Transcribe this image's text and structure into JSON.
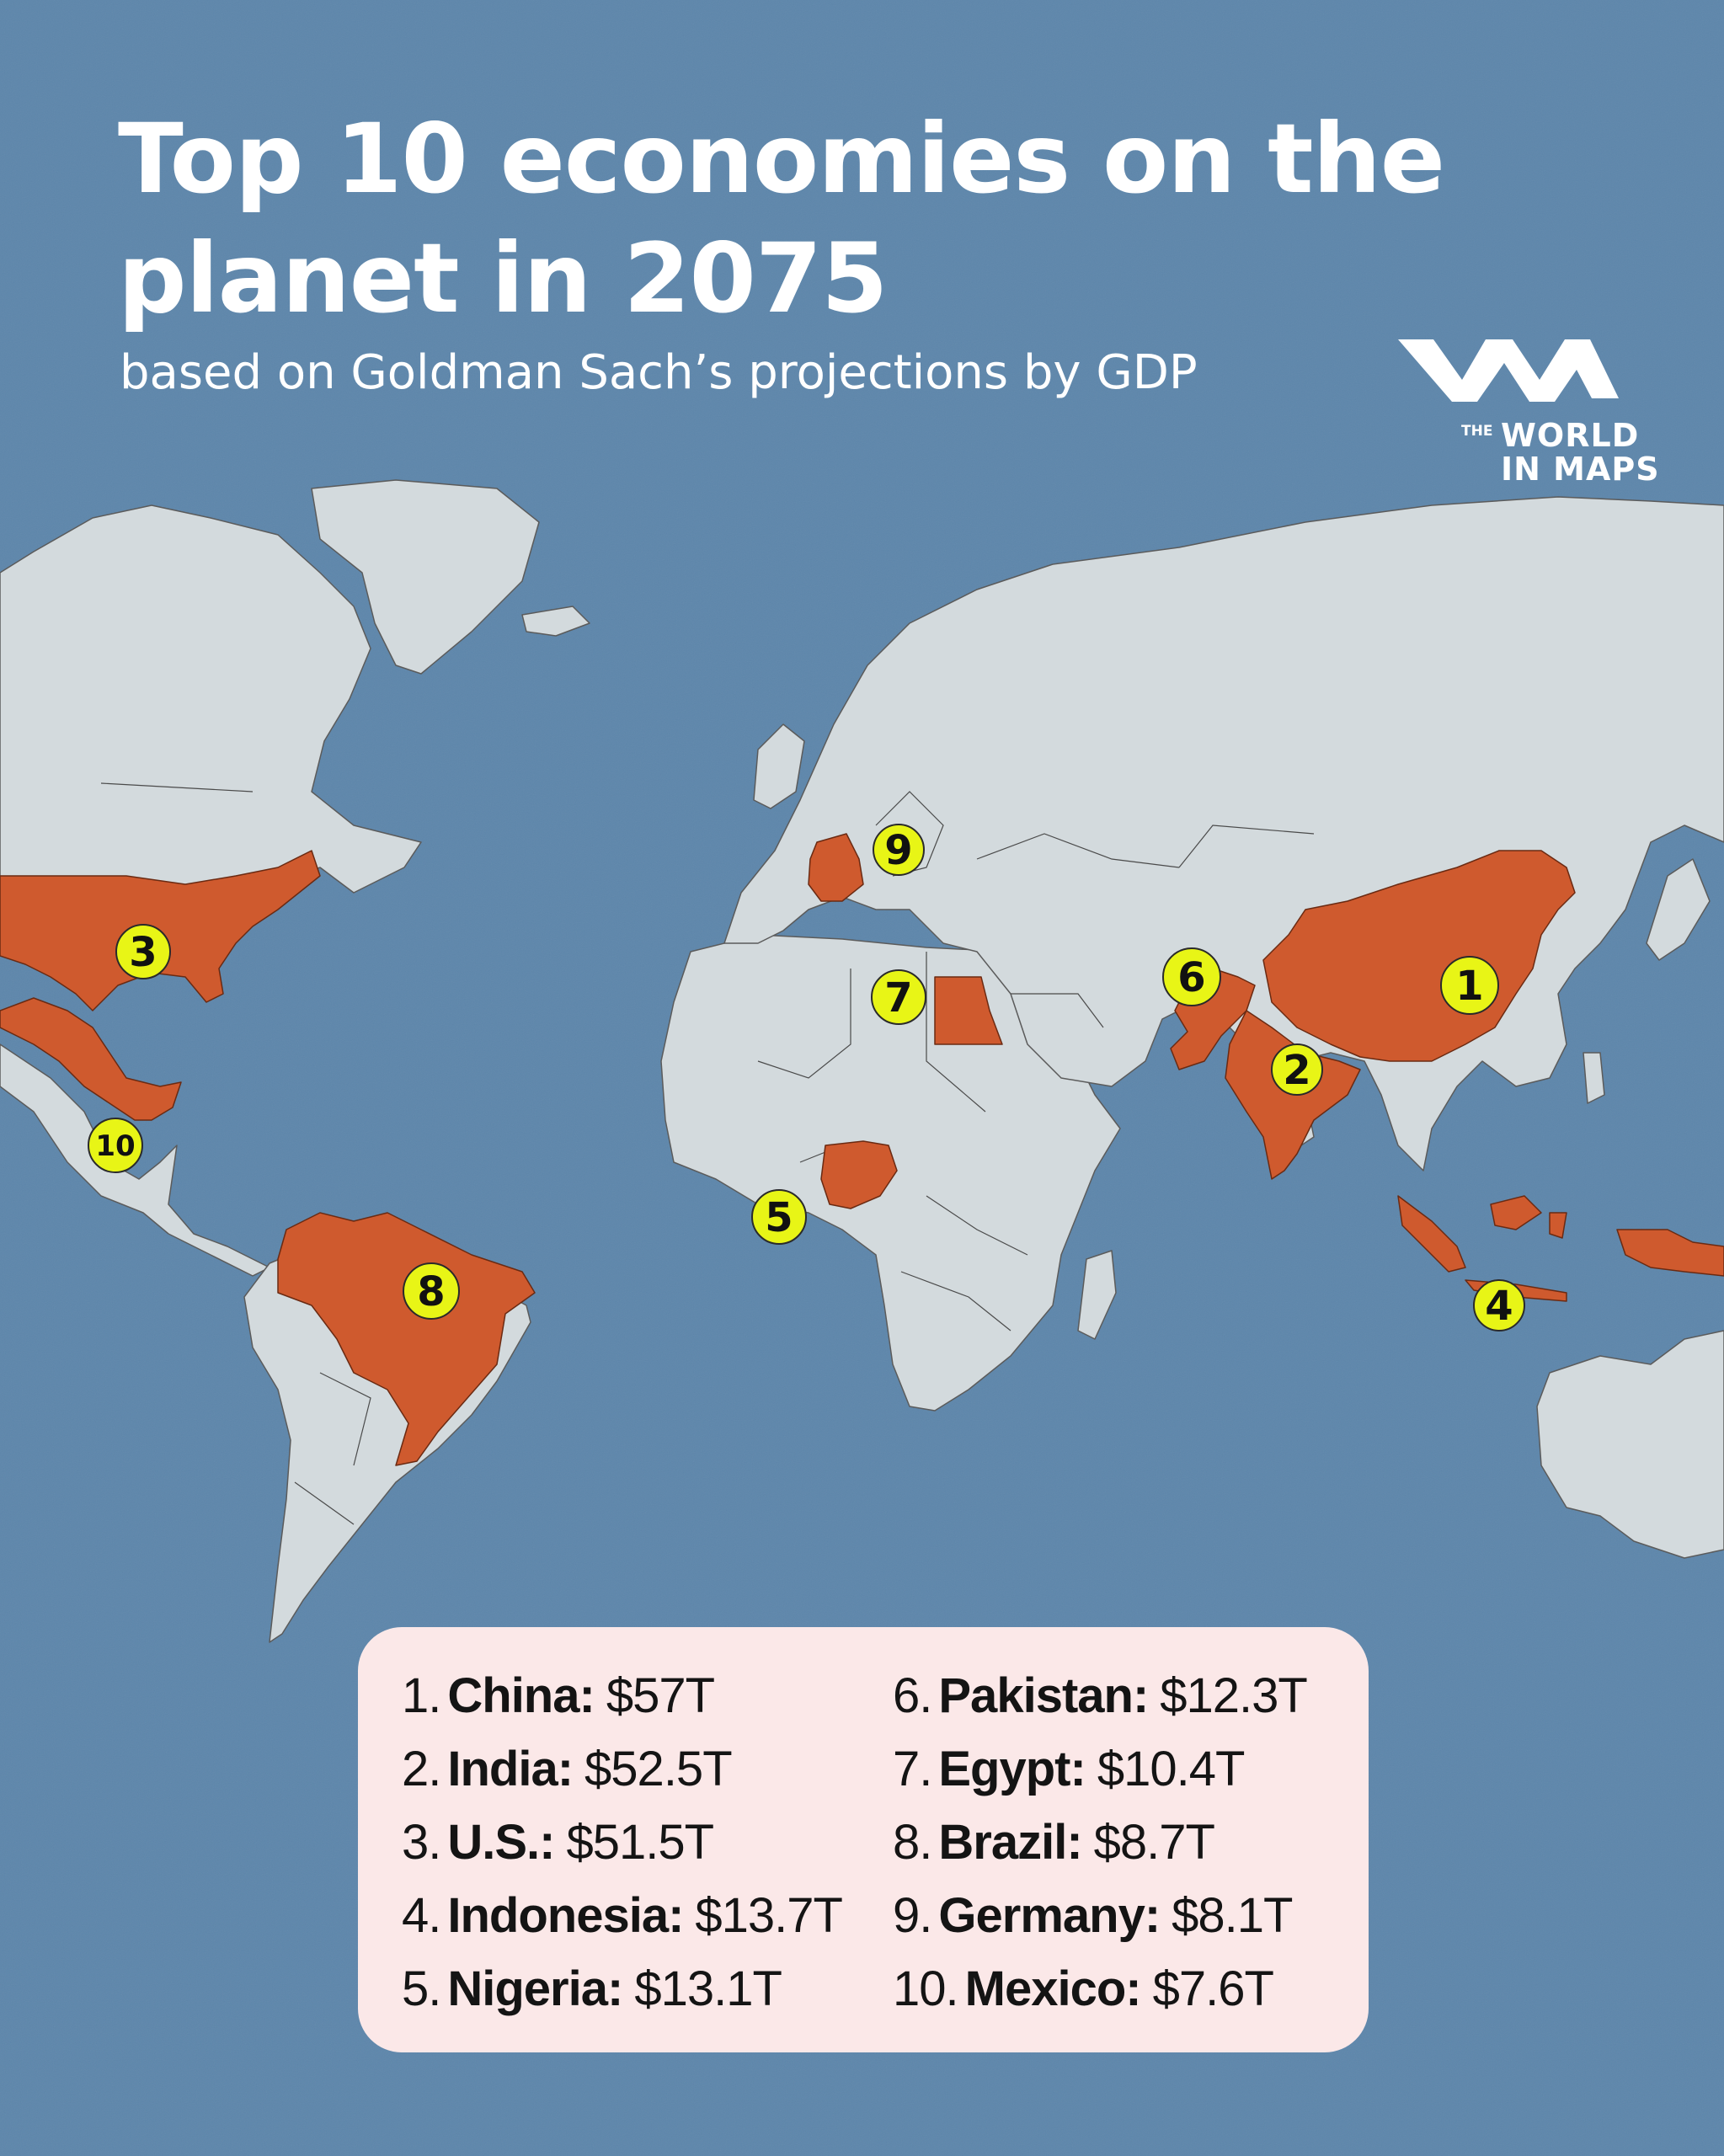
{
  "header": {
    "title": "Top 10 economies on the planet in 2075",
    "subtitle": "based on Goldman Sach’s projections by GDP"
  },
  "logo": {
    "the": "THE",
    "line1": "WORLD",
    "line2": "IN MAPS"
  },
  "colors": {
    "ocean": "#5d86ab",
    "land": "#d3dadd",
    "highlight": "#cf5a2e",
    "marker": "#e8f516",
    "legend_bg": "#fbe8e8",
    "border": "#4a4a4a"
  },
  "markers": [
    {
      "label": "1",
      "country": "China"
    },
    {
      "label": "2",
      "country": "India"
    },
    {
      "label": "3",
      "country": "U.S."
    },
    {
      "label": "4",
      "country": "Indonesia"
    },
    {
      "label": "5",
      "country": "Nigeria"
    },
    {
      "label": "6",
      "country": "Pakistan"
    },
    {
      "label": "7",
      "country": "Egypt"
    },
    {
      "label": "8",
      "country": "Brazil"
    },
    {
      "label": "9",
      "country": "Germany"
    },
    {
      "label": "10",
      "country": "Mexico"
    }
  ],
  "legend": {
    "left": [
      {
        "rank": "1.",
        "name": "China:",
        "value": "$57T"
      },
      {
        "rank": "2.",
        "name": "India:",
        "value": "$52.5T"
      },
      {
        "rank": "3.",
        "name": "U.S.:",
        "value": "$51.5T"
      },
      {
        "rank": "4.",
        "name": "Indonesia:",
        "value": "$13.7T"
      },
      {
        "rank": "5.",
        "name": "Nigeria:",
        "value": "$13.1T"
      }
    ],
    "right": [
      {
        "rank": "6.",
        "name": "Pakistan:",
        "value": "$12.3T"
      },
      {
        "rank": "7.",
        "name": "Egypt:",
        "value": "$10.4T"
      },
      {
        "rank": "8.",
        "name": "Brazil:",
        "value": "$8.7T"
      },
      {
        "rank": "9.",
        "name": "Germany:",
        "value": "$8.1T"
      },
      {
        "rank": "10.",
        "name": "Mexico:",
        "value": "$7.6T"
      }
    ]
  }
}
